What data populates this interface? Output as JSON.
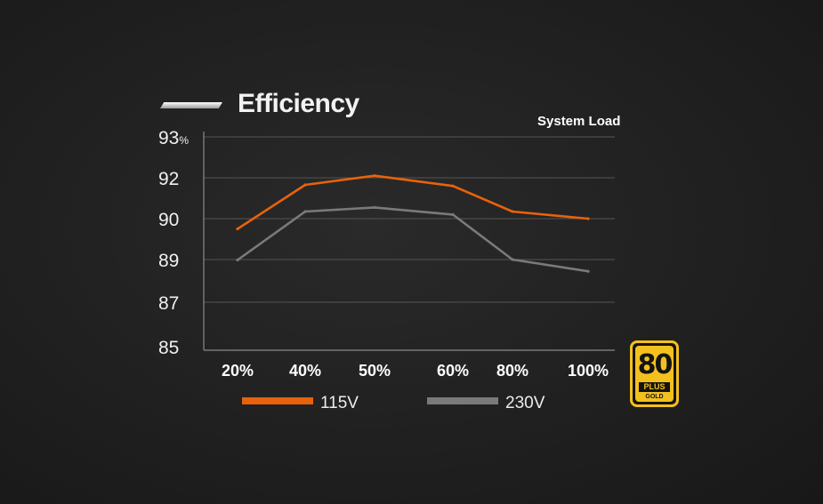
{
  "chart_data": {
    "type": "line",
    "title": "Efficiency",
    "subtitle": "System Load",
    "categories": [
      "20%",
      "40%",
      "50%",
      "60%",
      "80%",
      "100%"
    ],
    "y_ticks": [
      "85",
      "87",
      "89",
      "90",
      "92",
      "93"
    ],
    "y_unit": "%",
    "series": [
      {
        "name": "115V",
        "color": "#e8620c",
        "values": [
          89.75,
          91.65,
          92.05,
          91.6,
          90.35,
          90.0
        ]
      },
      {
        "name": "230V",
        "color": "#7a7a7a",
        "values": [
          88.98,
          90.35,
          90.55,
          90.2,
          89.0,
          88.45
        ]
      }
    ],
    "grid": true,
    "legend_position": "bottom"
  },
  "badge": {
    "number": "80",
    "plus_label": "PLUS",
    "grade_label": "GOLD",
    "color": "#f4c01e"
  }
}
